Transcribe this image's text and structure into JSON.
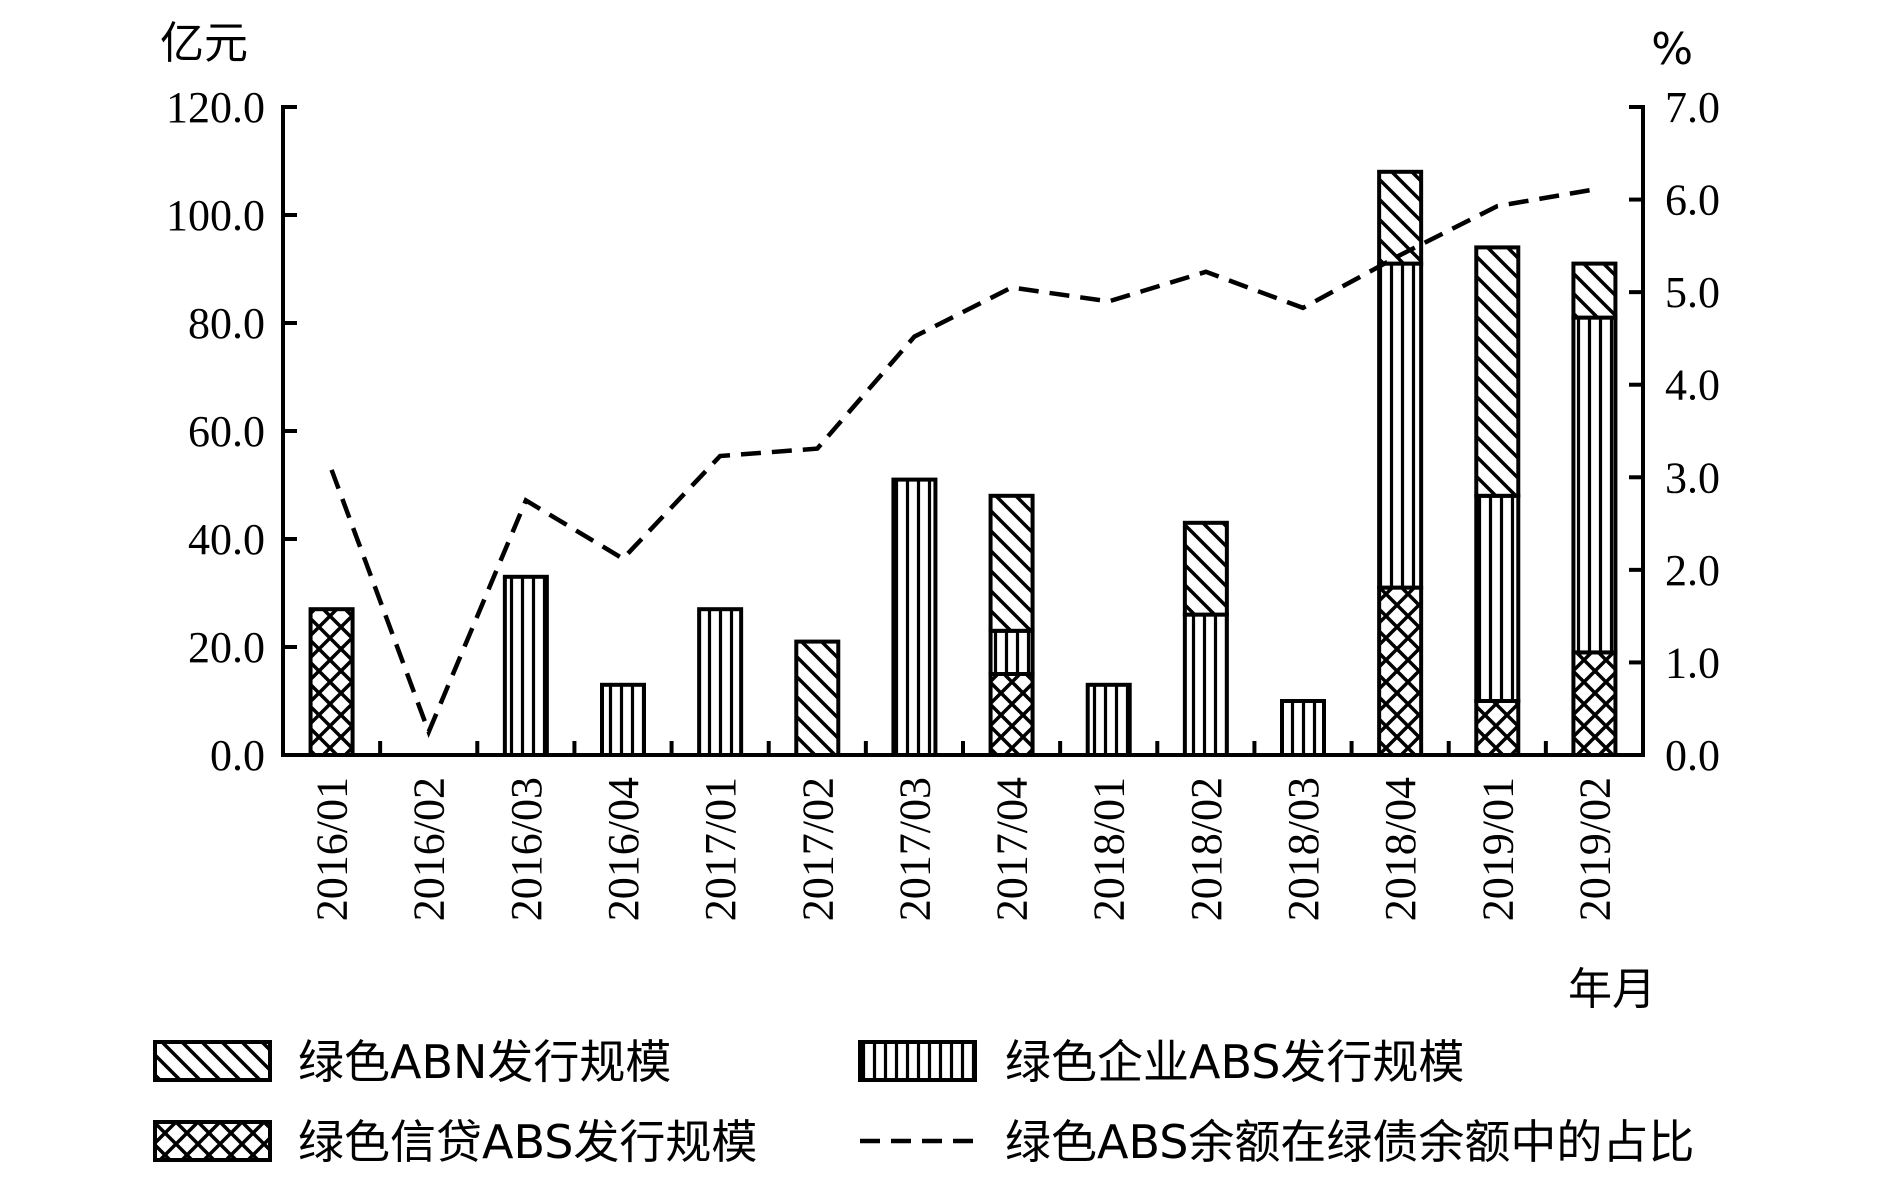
{
  "chart_data": {
    "type": "bar",
    "stacked": true,
    "categories": [
      "2016/01",
      "2016/02",
      "2016/03",
      "2016/04",
      "2017/01",
      "2017/02",
      "2017/03",
      "2017/04",
      "2018/01",
      "2018/02",
      "2018/03",
      "2018/04",
      "2019/01",
      "2019/02"
    ],
    "xlabel": "年月",
    "ylabel_left": "亿元",
    "ylabel_right": "%",
    "ylim_left": [
      0,
      120
    ],
    "ylim_right": [
      0,
      7
    ],
    "yticks_left": [
      "0.0",
      "20.0",
      "40.0",
      "60.0",
      "80.0",
      "100.0",
      "120.0"
    ],
    "yticks_right": [
      "0.0",
      "1.0",
      "2.0",
      "3.0",
      "4.0",
      "5.0",
      "6.0",
      "7.0"
    ],
    "grid": false,
    "legend_position": "bottom",
    "series": [
      {
        "name": "绿色信贷ABS发行规模",
        "kind": "bar",
        "axis": "left",
        "pattern": "crosshatch",
        "values": [
          27,
          0,
          0,
          0,
          0,
          0,
          0,
          15,
          0,
          0,
          0,
          31,
          10,
          19
        ]
      },
      {
        "name": "绿色企业ABS发行规模",
        "kind": "bar",
        "axis": "left",
        "pattern": "vertical",
        "values": [
          0,
          0,
          33,
          13,
          27,
          0,
          51,
          8,
          13,
          26,
          10,
          60,
          38,
          62
        ]
      },
      {
        "name": "绿色ABN发行规模",
        "kind": "bar",
        "axis": "left",
        "pattern": "diagonal",
        "values": [
          0,
          0,
          0,
          0,
          0,
          21,
          0,
          25,
          0,
          17,
          0,
          17,
          46,
          10
        ]
      },
      {
        "name": "绿色ABS余额在绿债余额中的占比",
        "kind": "line",
        "axis": "right",
        "style": "dashed",
        "values": [
          3.08,
          0.25,
          2.75,
          2.12,
          3.23,
          3.31,
          4.52,
          5.05,
          4.9,
          5.22,
          4.83,
          5.4,
          5.93,
          6.11
        ]
      }
    ]
  }
}
